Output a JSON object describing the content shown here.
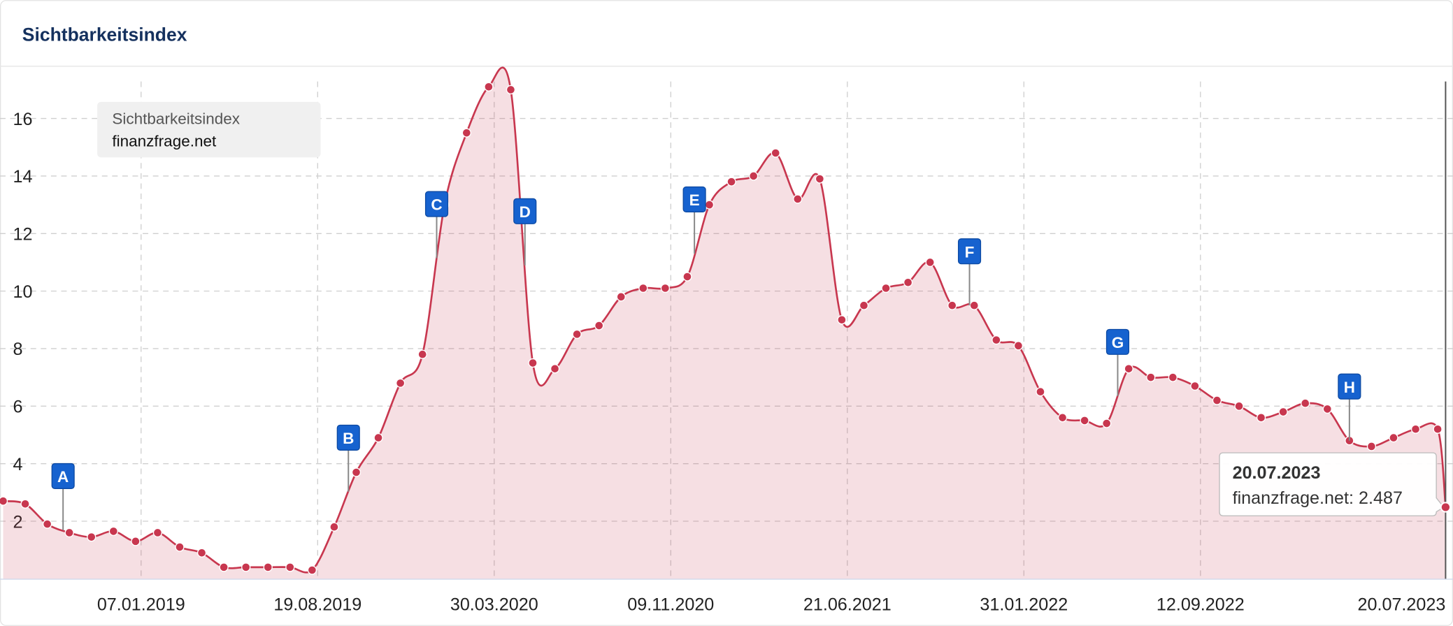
{
  "chart_data": {
    "type": "line",
    "title": "Sichtbarkeitsindex",
    "legend_title": "Sichtbarkeitsindex",
    "x": [
      "16.07.2018",
      "13.08.2018",
      "10.09.2018",
      "08.10.2018",
      "05.11.2018",
      "03.12.2018",
      "31.12.2018",
      "28.01.2019",
      "25.02.2019",
      "25.03.2019",
      "22.04.2019",
      "20.05.2019",
      "17.06.2019",
      "15.07.2019",
      "12.08.2019",
      "09.09.2019",
      "07.10.2019",
      "04.11.2019",
      "02.12.2019",
      "30.12.2019",
      "27.01.2020",
      "24.02.2020",
      "23.03.2020",
      "20.04.2020",
      "18.05.2020",
      "15.06.2020",
      "13.07.2020",
      "10.08.2020",
      "07.09.2020",
      "05.10.2020",
      "02.11.2020",
      "30.11.2020",
      "28.12.2020",
      "25.01.2021",
      "22.02.2021",
      "22.03.2021",
      "19.04.2021",
      "17.05.2021",
      "14.06.2021",
      "12.07.2021",
      "09.08.2021",
      "06.09.2021",
      "04.10.2021",
      "01.11.2021",
      "29.11.2021",
      "27.12.2021",
      "24.01.2022",
      "21.02.2022",
      "21.03.2022",
      "18.04.2022",
      "16.05.2022",
      "13.06.2022",
      "11.07.2022",
      "08.08.2022",
      "05.09.2022",
      "03.10.2022",
      "31.10.2022",
      "28.11.2022",
      "26.12.2022",
      "23.01.2023",
      "20.02.2023",
      "20.03.2023",
      "17.04.2023",
      "15.05.2023",
      "12.06.2023",
      "10.07.2023",
      "20.07.2023"
    ],
    "series": [
      {
        "name": "finanzfrage.net",
        "color": "#c8374f",
        "values": [
          2.7,
          2.6,
          1.9,
          1.6,
          1.45,
          1.65,
          1.3,
          1.6,
          1.1,
          0.9,
          0.4,
          0.4,
          0.4,
          0.4,
          0.3,
          1.8,
          3.7,
          4.9,
          6.8,
          7.8,
          13.0,
          15.5,
          17.1,
          17.0,
          7.5,
          7.3,
          8.5,
          8.8,
          9.8,
          10.1,
          10.1,
          10.5,
          13.0,
          13.8,
          14.0,
          14.8,
          13.2,
          13.9,
          9.0,
          9.5,
          10.1,
          10.3,
          11.0,
          9.5,
          9.5,
          8.3,
          8.1,
          6.5,
          5.6,
          5.5,
          5.4,
          7.3,
          7.0,
          7.0,
          6.7,
          6.2,
          6.0,
          5.6,
          5.8,
          6.1,
          5.9,
          4.8,
          4.6,
          4.9,
          5.2,
          5.2,
          2.487
        ]
      }
    ],
    "xlim": [
      "12.07.2018",
      "20.07.2023"
    ],
    "xticks": [
      "07.01.2019",
      "19.08.2019",
      "30.03.2020",
      "09.11.2020",
      "21.06.2021",
      "31.01.2022",
      "12.09.2022",
      "20.07.2023"
    ],
    "ylim": [
      0,
      17.8
    ],
    "yticks": [
      2,
      4,
      6,
      8,
      10,
      12,
      14,
      16
    ],
    "grid": true,
    "annotations": [
      {
        "label": "A",
        "x": "30.09.2018"
      },
      {
        "label": "B",
        "x": "27.09.2019"
      },
      {
        "label": "C",
        "x": "17.01.2020"
      },
      {
        "label": "D",
        "x": "08.05.2020"
      },
      {
        "label": "E",
        "x": "09.12.2020"
      },
      {
        "label": "F",
        "x": "23.11.2021"
      },
      {
        "label": "G",
        "x": "30.05.2022"
      },
      {
        "label": "H",
        "x": "20.03.2023"
      }
    ]
  }
}
